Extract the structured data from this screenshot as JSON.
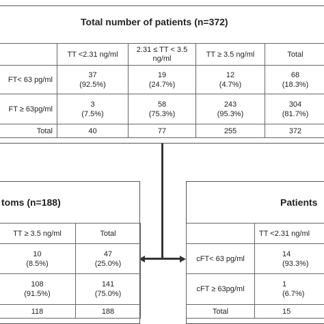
{
  "top": {
    "title": "Total number of patients (n=372)",
    "headers": [
      "",
      "TT <2.31 ng/ml",
      "2.31 ≤ TT < 3.5 ng/ml",
      "TT ≥ 3.5  ng/ml",
      "Total"
    ],
    "rows": [
      {
        "label": "FT< 63 pg/ml",
        "c1": "37\n(92.5%)",
        "c2": "19\n(24.7%)",
        "c3": "12\n(4.7%)",
        "c4": "68\n(18.3%)"
      },
      {
        "label": "FT ≥ 63pg/ml",
        "c1": "3\n(7.5%)",
        "c2": "58\n(75.3%)",
        "c3": "243\n(95.3%)",
        "c4": "304\n(81.7%)"
      },
      {
        "label": "Total",
        "c1": "40",
        "c2": "77",
        "c3": "255",
        "c4": "372"
      }
    ]
  },
  "left": {
    "title": "toms (n=188)",
    "headers": [
      "TT ≥ 3.5  ng/ml",
      "Total"
    ],
    "rows": [
      {
        "c1": "10\n(8.5%)",
        "c2": "47\n(25.0%)"
      },
      {
        "c1": "108\n(91.5%)",
        "c2": "141\n(75.0%)"
      },
      {
        "c1": "118",
        "c2": "188"
      }
    ]
  },
  "right": {
    "title": "Patients",
    "headers": [
      "",
      "TT <2.31 ng/ml"
    ],
    "rows": [
      {
        "label": "cFT< 63 pg/ml",
        "c1": "14\n(93.3%)"
      },
      {
        "label": "cFT ≥ 63pg/ml",
        "c1": "1\n(6.7%)"
      },
      {
        "label": "Total",
        "c1": "15"
      }
    ]
  },
  "colors": {
    "line": "#333333",
    "border": "#666666"
  }
}
